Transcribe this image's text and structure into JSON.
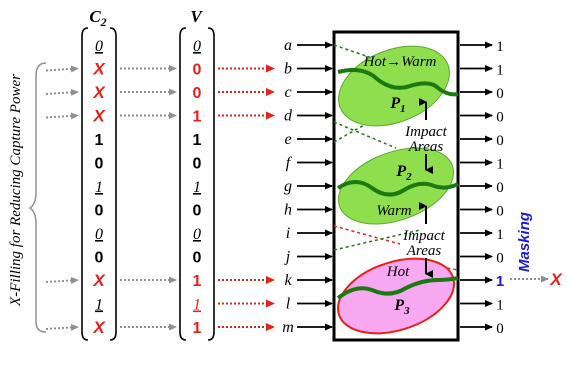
{
  "side_label": "X-Filling for Reducing Capture Power",
  "c2": {
    "header": "C",
    "header_sub": "2",
    "values": [
      "0",
      "X",
      "X",
      "X",
      "1",
      "0",
      "1",
      "0",
      "0",
      "0",
      "X",
      "1",
      "X"
    ]
  },
  "v": {
    "header": "V",
    "values": [
      "0",
      "0",
      "0",
      "1",
      "1",
      "0",
      "1",
      "0",
      "0",
      "0",
      "1",
      "1",
      "1"
    ]
  },
  "inputs": [
    "a",
    "b",
    "c",
    "d",
    "e",
    "f",
    "g",
    "h",
    "i",
    "j",
    "k",
    "l",
    "m"
  ],
  "outputs": [
    "1",
    "1",
    "0",
    "0",
    "0",
    "1",
    "0",
    "0",
    "1",
    "0",
    "1",
    "1",
    "0"
  ],
  "regions": {
    "p1": {
      "label": "P",
      "sub": "1",
      "note": "Hot→Warm"
    },
    "p2": {
      "label": "P",
      "sub": "2",
      "note": "Warm"
    },
    "p3": {
      "label": "P",
      "sub": "3",
      "note": "Hot"
    }
  },
  "impact_1": [
    "Impact",
    "Areas"
  ],
  "impact_2": [
    "Impact",
    "Areas"
  ],
  "masking": {
    "label": "Masking",
    "result": "X"
  },
  "colors": {
    "x_red": "#e8201a",
    "green_fill": "#8ede4e",
    "green_path": "#1a7a10",
    "pink_fill": "#f7a8f0",
    "blue": "#1a1ad6",
    "gray_arrow": "#909090"
  }
}
